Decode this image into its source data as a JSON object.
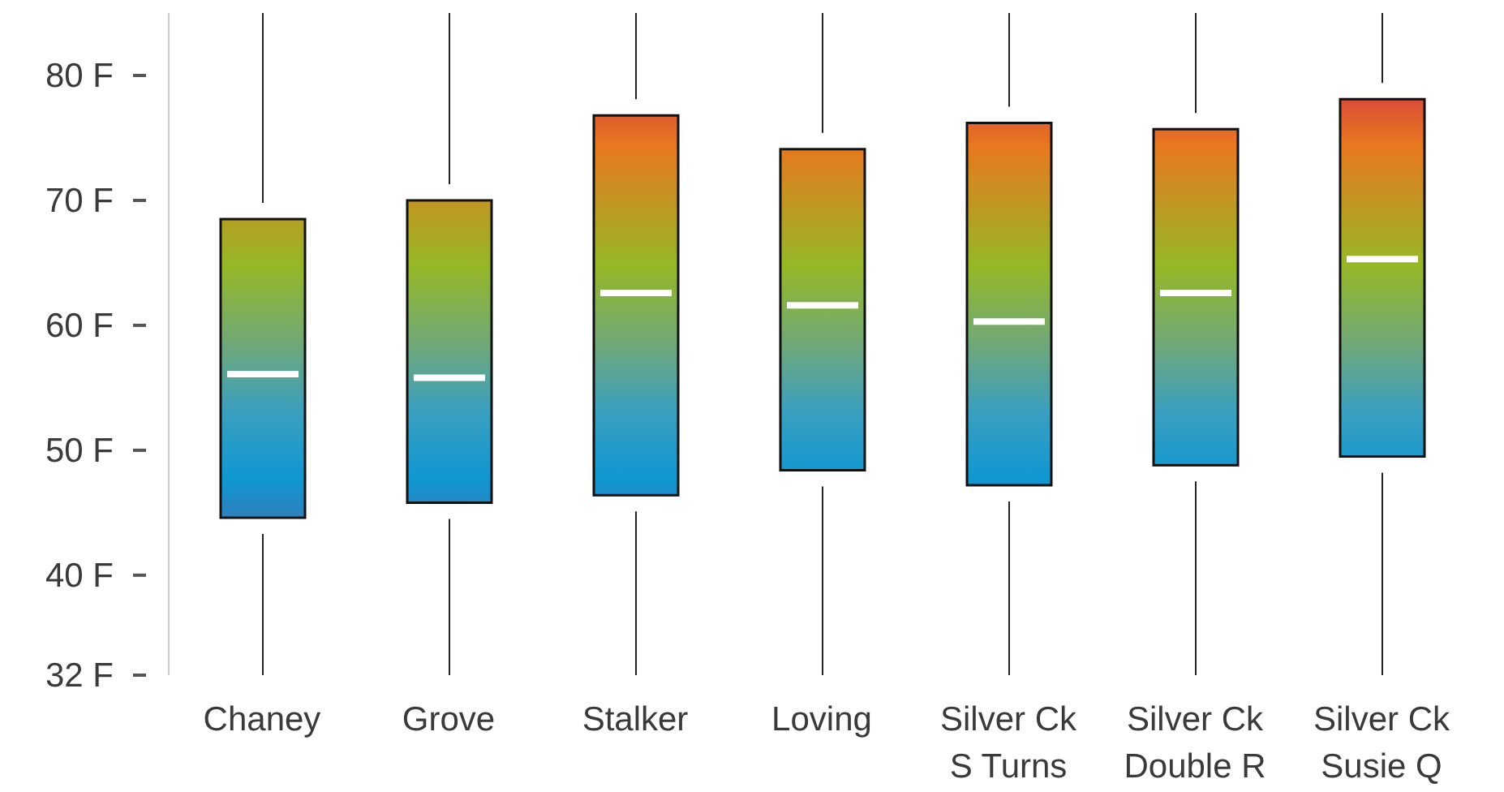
{
  "chart_data": {
    "type": "box",
    "categories": [
      "Chaney",
      "Grove",
      "Stalker",
      "Loving",
      "Silver Ck S Turns",
      "Silver Ck Double R",
      "Silver Ck Susie Q"
    ],
    "boxes": [
      {
        "low": 32,
        "q1": 44.6,
        "median": 56.1,
        "q3": 68.5,
        "high": 85
      },
      {
        "low": 32,
        "q1": 45.8,
        "median": 55.8,
        "q3": 70,
        "high": 85
      },
      {
        "low": 32,
        "q1": 46.4,
        "median": 62.6,
        "q3": 76.8,
        "high": 85
      },
      {
        "low": 32,
        "q1": 48.4,
        "median": 61.6,
        "q3": 74.1,
        "high": 85
      },
      {
        "low": 32,
        "q1": 47.2,
        "median": 60.3,
        "q3": 76.2,
        "high": 85
      },
      {
        "low": 32,
        "q1": 48.8,
        "median": 62.6,
        "q3": 75.7,
        "high": 85
      },
      {
        "low": 32,
        "q1": 49.5,
        "median": 65.3,
        "q3": 78.1,
        "high": 85
      }
    ],
    "ylim": [
      32,
      85
    ],
    "yticks": [
      {
        "value": 32,
        "label": "32 F"
      },
      {
        "value": 40,
        "label": "40 F"
      },
      {
        "value": 50,
        "label": "50 F"
      },
      {
        "value": 60,
        "label": "60 F"
      },
      {
        "value": 70,
        "label": "70 F"
      },
      {
        "value": 80,
        "label": "80 F"
      }
    ],
    "grid": false,
    "legend": false
  }
}
